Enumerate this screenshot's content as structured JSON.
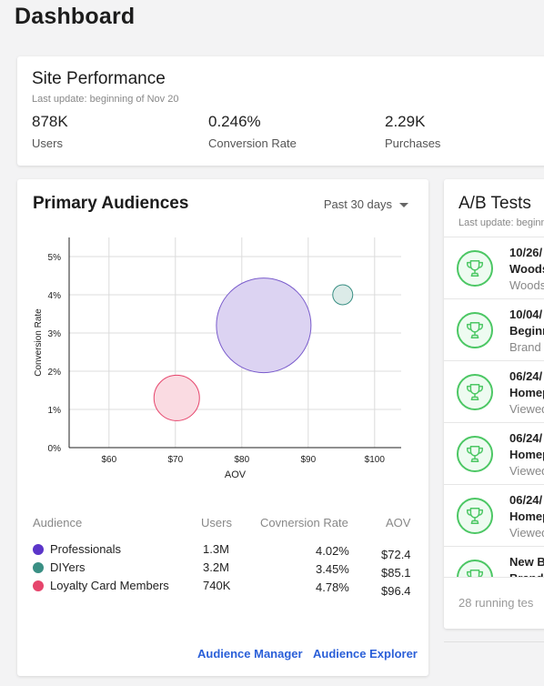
{
  "page": {
    "title": "Dashboard"
  },
  "site_performance": {
    "title": "Site Performance",
    "subtitle": "Last update: beginning of Nov 20",
    "metrics": [
      {
        "value": "878K",
        "label": "Users"
      },
      {
        "value": "0.246%",
        "label": "Conversion Rate"
      },
      {
        "value": "2.29K",
        "label": "Purchases"
      }
    ]
  },
  "primary_audiences": {
    "title": "Primary Audiences",
    "range_label": "Past 30 days",
    "table": {
      "headers": [
        "Audience",
        "Users",
        "Covnersion Rate",
        "AOV"
      ],
      "rows": [
        {
          "name": "Professionals",
          "users": "1.3M",
          "conv": "4.02%",
          "aov": "$72.4",
          "color": "#5b35c9"
        },
        {
          "name": "DIYers",
          "users": "3.2M",
          "conv": "3.45%",
          "aov": "$85.1",
          "color": "#3a8f84"
        },
        {
          "name": "Loyalty Card Members",
          "users": "740K",
          "conv": "4.78%",
          "aov": "$96.4",
          "color": "#e6456c"
        }
      ]
    },
    "links": {
      "manager": "Audience Manager",
      "explorer": "Audience Explorer"
    }
  },
  "chart_data": {
    "type": "scatter",
    "xlabel": "AOV",
    "ylabel": "Conversion Rate",
    "x_ticks": [
      "$60",
      "$70",
      "$80",
      "$90",
      "$100"
    ],
    "y_ticks": [
      "0%",
      "1%",
      "2%",
      "3%",
      "4%",
      "5%"
    ],
    "xlim": [
      54,
      104
    ],
    "ylim": [
      0,
      5.5
    ],
    "points": [
      {
        "x": 83.3,
        "y": 3.2,
        "r": 52,
        "fill": "#dcd3f2",
        "stroke": "#7a5ccc"
      },
      {
        "x": 95.2,
        "y": 4.0,
        "r": 11,
        "fill": "#dcebe8",
        "stroke": "#3a8f84"
      },
      {
        "x": 70.2,
        "y": 1.3,
        "r": 25,
        "fill": "#fadbe2",
        "stroke": "#e6456c"
      }
    ]
  },
  "ab_tests": {
    "title": "A/B Tests",
    "subtitle": "Last update: beginn",
    "items": [
      {
        "date": "10/26/",
        "title": "Woods",
        "desc": "Woods"
      },
      {
        "date": "10/04/",
        "title": "Beginn",
        "desc": "Brand"
      },
      {
        "date": "06/24/",
        "title": "Homep",
        "desc": "Viewed"
      },
      {
        "date": "06/24/",
        "title": "Homep",
        "desc": "Viewed"
      },
      {
        "date": "06/24/",
        "title": "Homep",
        "desc": "Viewed"
      },
      {
        "date": "New B",
        "title": "Brand",
        "desc": ""
      }
    ],
    "footer": "28 running tes"
  }
}
